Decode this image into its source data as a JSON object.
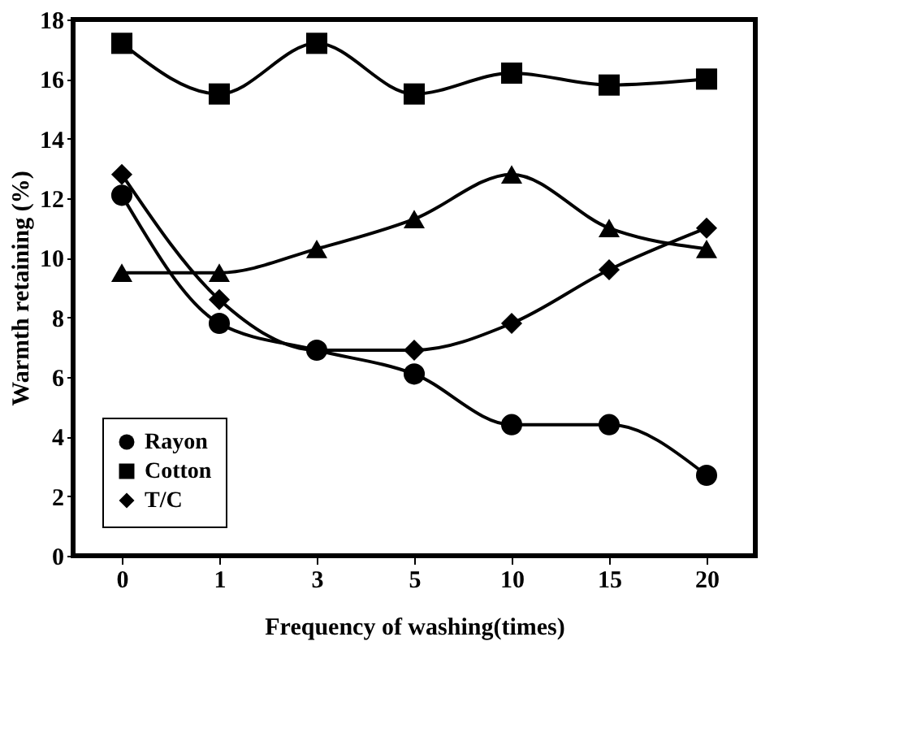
{
  "chart_data": {
    "type": "line",
    "xlabel": "Frequency of washing(times)",
    "ylabel": "Warmth retaining (%)",
    "categories": [
      "0",
      "1",
      "3",
      "5",
      "10",
      "15",
      "20"
    ],
    "ylim": [
      0,
      18
    ],
    "yticks": [
      0,
      2,
      4,
      6,
      8,
      10,
      12,
      14,
      16,
      18
    ],
    "grid": false,
    "legend": "bottom left",
    "line_style": "solid",
    "series": [
      {
        "name": "Rayon",
        "color": "#000000",
        "marker": "circle",
        "values": [
          12.1,
          7.8,
          6.9,
          6.1,
          4.4,
          4.4,
          2.7
        ]
      },
      {
        "name": "Cotton",
        "color": "#000000",
        "marker": "square",
        "values": [
          17.2,
          15.5,
          17.2,
          15.5,
          16.2,
          15.8,
          16.0
        ]
      },
      {
        "name": "T/C",
        "color": "#000000",
        "marker": "diamond",
        "values": [
          12.8,
          8.6,
          6.9,
          6.9,
          7.8,
          9.6,
          11.0
        ]
      },
      {
        "color": "#000000",
        "marker": "triangle",
        "values": [
          9.5,
          9.5,
          10.3,
          11.3,
          12.8,
          11.0,
          10.3
        ]
      }
    ]
  }
}
